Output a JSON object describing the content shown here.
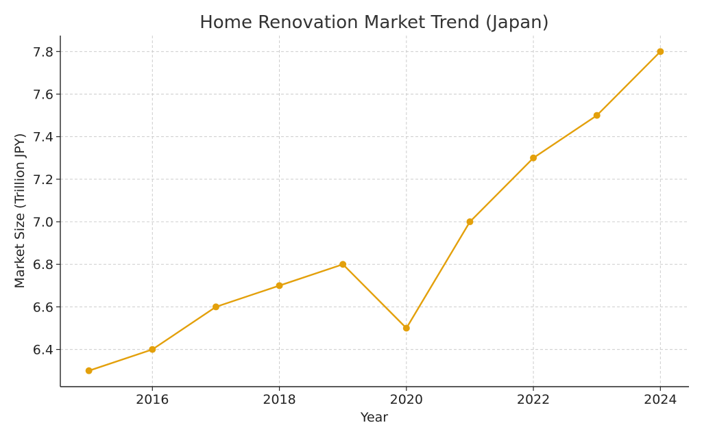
{
  "chart_data": {
    "type": "line",
    "title": "Home Renovation Market Trend (Japan)",
    "xlabel": "Year",
    "ylabel": "Market Size (Trillion JPY)",
    "x": [
      2015,
      2016,
      2017,
      2018,
      2019,
      2020,
      2021,
      2022,
      2023,
      2024
    ],
    "series": [
      {
        "values": [
          6.3,
          6.4,
          6.6,
          6.7,
          6.8,
          6.5,
          7.0,
          7.3,
          7.5,
          7.8
        ]
      }
    ],
    "xlim": [
      2014.55,
      2024.45
    ],
    "ylim": [
      6.225,
      7.875
    ],
    "xticks": [
      2016,
      2018,
      2020,
      2022,
      2024
    ],
    "xtick_labels": [
      "2016",
      "2018",
      "2020",
      "2022",
      "2024"
    ],
    "yticks": [
      6.4,
      6.6,
      6.8,
      7.0,
      7.2,
      7.4,
      7.6,
      7.8
    ],
    "ytick_labels": [
      "6.4",
      "6.6",
      "6.8",
      "7.0",
      "7.2",
      "7.4",
      "7.6",
      "7.8"
    ],
    "grid": true,
    "line_color": "#E3A00B",
    "marker": "circle"
  }
}
